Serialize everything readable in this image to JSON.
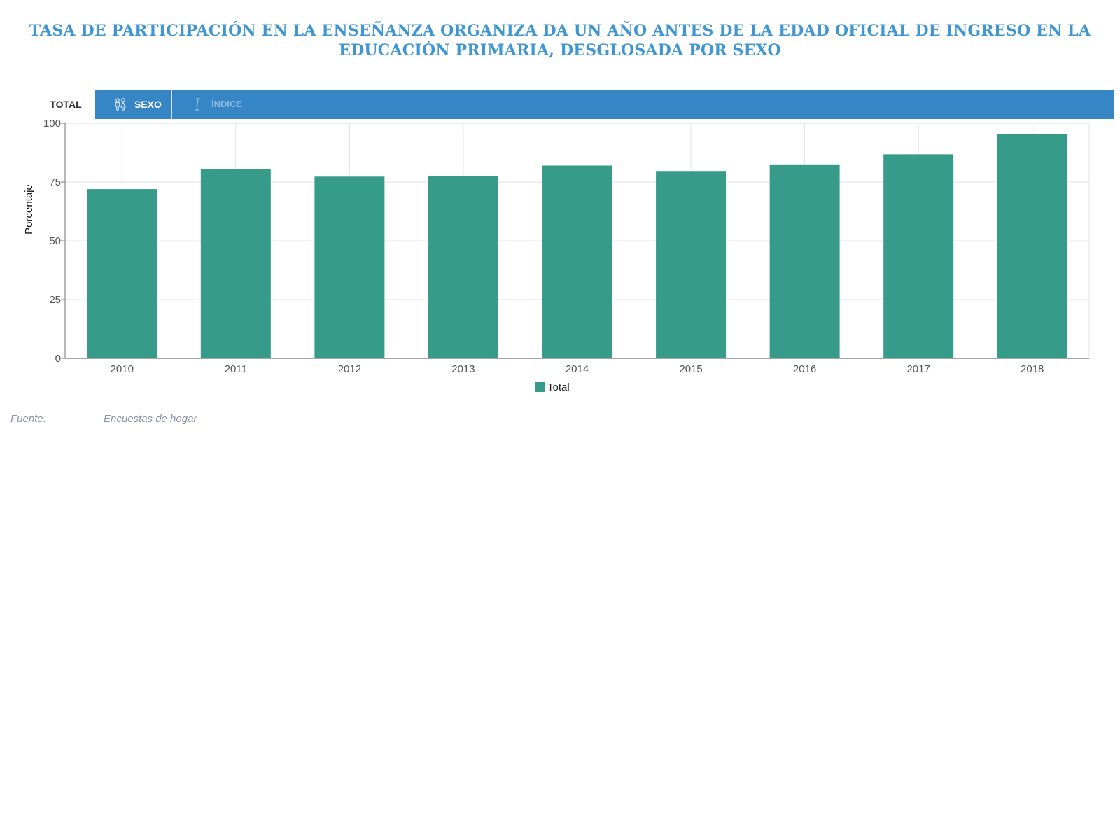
{
  "title": "TASA DE PARTICIPACIÓN EN LA ENSEÑANZA ORGANIZA DA UN AÑO ANTES DE LA EDAD OFICIAL DE INGRESO EN LA EDUCACIÓN PRIMARIA, DESGLOSADA POR SEXO",
  "tabs": {
    "total": "TOTAL",
    "sexo": "SEXO",
    "third": "ÍNDICE"
  },
  "icons": {
    "sexo": "gender-icon",
    "third": "index-icon"
  },
  "colors": {
    "title": "#3f96d2",
    "tab_strip": "#3685c5",
    "bar": "#379b8a",
    "source_text": "#8a93a6"
  },
  "chart_data": {
    "type": "bar",
    "title": "",
    "xlabel": "",
    "ylabel": "Porcentaje",
    "ylim": [
      0,
      100
    ],
    "yticks": [
      0,
      25,
      50,
      75,
      100
    ],
    "grid": true,
    "legend_position": "bottom-center",
    "categories": [
      "2010",
      "2011",
      "2012",
      "2013",
      "2014",
      "2015",
      "2016",
      "2017",
      "2018"
    ],
    "series": [
      {
        "name": "Total",
        "color": "#379b8a",
        "values": [
          72,
          80.5,
          77.3,
          77.5,
          82,
          79.7,
          82.5,
          86.8,
          95.5
        ]
      }
    ]
  },
  "legend": {
    "total": "Total"
  },
  "source": {
    "label": "Fuente:",
    "value": "Encuestas de hogar"
  }
}
